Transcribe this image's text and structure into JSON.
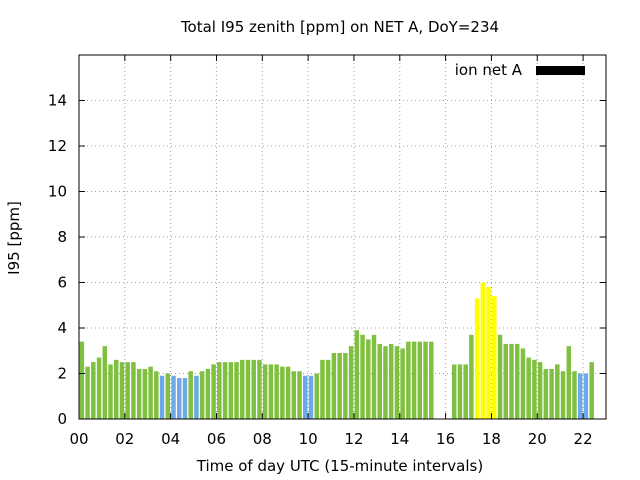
{
  "chart_data": {
    "type": "bar",
    "title": "Total I95 zenith [ppm] on NET A, DoY=234",
    "xlabel": "Time of day UTC (15-minute intervals)",
    "ylabel": "I95 [ppm]",
    "xlim": [
      0,
      23
    ],
    "ylim": [
      0,
      16
    ],
    "xticks": [
      "00",
      "02",
      "04",
      "06",
      "08",
      "10",
      "12",
      "14",
      "16",
      "18",
      "20",
      "22"
    ],
    "yticks": [
      "0",
      "2",
      "4",
      "6",
      "8",
      "10",
      "12",
      "14"
    ],
    "grid": true,
    "legend": {
      "position": "top-right",
      "label": "ion net A",
      "color": "#000000"
    },
    "colors": {
      "green": "#80c040",
      "blue": "#6ea8e6",
      "yellow": "#ffff00"
    },
    "bin_hours": 0.25,
    "values": [
      3.4,
      2.3,
      2.5,
      2.7,
      3.2,
      2.4,
      2.6,
      2.5,
      2.5,
      2.5,
      2.2,
      2.2,
      2.3,
      2.1,
      1.9,
      2.0,
      1.9,
      1.8,
      1.8,
      2.1,
      1.9,
      2.1,
      2.2,
      2.4,
      2.5,
      2.5,
      2.5,
      2.5,
      2.6,
      2.6,
      2.6,
      2.6,
      2.4,
      2.4,
      2.4,
      2.3,
      2.3,
      2.1,
      2.1,
      1.9,
      1.9,
      2.0,
      2.6,
      2.6,
      2.9,
      2.9,
      2.9,
      3.2,
      3.9,
      3.7,
      3.5,
      3.7,
      3.3,
      3.2,
      3.3,
      3.2,
      3.1,
      3.4,
      3.4,
      3.4,
      3.4,
      3.4,
      null,
      null,
      null,
      2.4,
      2.4,
      2.4,
      3.7,
      5.3,
      6.0,
      5.8,
      5.4,
      3.7,
      3.3,
      3.3,
      3.3,
      3.1,
      2.7,
      2.6,
      2.5,
      2.2,
      2.2,
      2.4,
      2.1,
      3.2,
      2.1,
      2.0,
      2.0,
      2.5
    ],
    "bar_colors": [
      "green",
      "green",
      "green",
      "green",
      "green",
      "green",
      "green",
      "green",
      "green",
      "green",
      "green",
      "green",
      "green",
      "green",
      "blue",
      "green",
      "blue",
      "blue",
      "blue",
      "green",
      "blue",
      "green",
      "green",
      "green",
      "green",
      "green",
      "green",
      "green",
      "green",
      "green",
      "green",
      "green",
      "green",
      "green",
      "green",
      "green",
      "green",
      "green",
      "green",
      "blue",
      "blue",
      "green",
      "green",
      "green",
      "green",
      "green",
      "green",
      "green",
      "green",
      "green",
      "green",
      "green",
      "green",
      "green",
      "green",
      "green",
      "green",
      "green",
      "green",
      "green",
      "green",
      "green",
      "green",
      "green",
      "green",
      "green",
      "green",
      "green",
      "green",
      "yellow",
      "yellow",
      "yellow",
      "yellow",
      "green",
      "green",
      "green",
      "green",
      "green",
      "green",
      "green",
      "green",
      "green",
      "green",
      "green",
      "green",
      "green",
      "green",
      "blue",
      "blue",
      "green"
    ]
  }
}
